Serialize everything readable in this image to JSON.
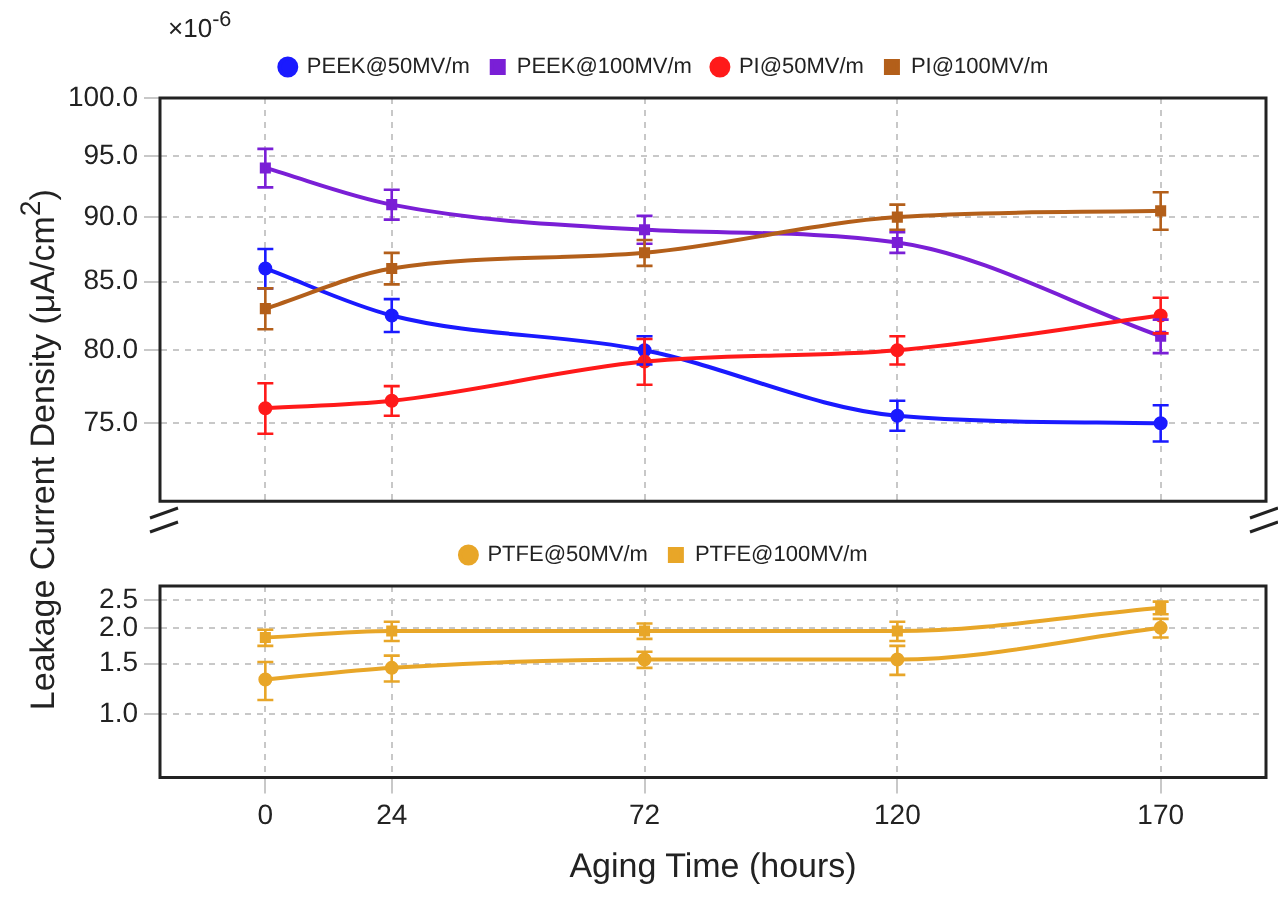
{
  "chart_data": [
    {
      "type": "line",
      "ylabel": "Leakage Current Density (μA/cm$^{2}$)",
      "annotations": [
        "×10$^{-6}$"
      ],
      "x": [
        0,
        24,
        72,
        120,
        170
      ],
      "xlim": [
        -20,
        190
      ],
      "xticks": [
        0,
        24,
        72,
        120,
        170
      ],
      "ylim": [
        70,
        100
      ],
      "yticks": [
        {
          "value": 75,
          "label": "75.0"
        },
        {
          "value": 80,
          "label": "80.0"
        },
        {
          "value": 85,
          "label": "85.0"
        },
        {
          "value": 90,
          "label": "90.0"
        },
        {
          "value": 95,
          "label": "95.0"
        },
        {
          "value": 100,
          "label": "100.0"
        }
      ],
      "log": "y",
      "grid": true,
      "legend": "top",
      "tick_labels": "y",
      "series": [
        {
          "name": "PEEK@50MV/m",
          "color": "#1a1aff",
          "marker": "circle",
          "values": [
            86,
            82.5,
            80,
            75.5,
            75
          ],
          "errors": [
            1.5,
            1.2,
            1,
            1,
            1.2
          ]
        },
        {
          "name": "PEEK@100MV/m",
          "color": "#7a1fd6",
          "marker": "square",
          "values": [
            94,
            91,
            89,
            88,
            81
          ],
          "errors": [
            1.6,
            1.2,
            1.1,
            0.8,
            1.2
          ]
        },
        {
          "name": "PI@50MV/m",
          "color": "#ff1a1a",
          "marker": "circle",
          "values": [
            76,
            76.5,
            79.2,
            80,
            82.5
          ],
          "errors": [
            1.7,
            1,
            1.6,
            1,
            1.3
          ]
        },
        {
          "name": "PI@100MV/m",
          "color": "#b35f1a",
          "marker": "square",
          "values": [
            83,
            86,
            87.2,
            90,
            90.5
          ],
          "errors": [
            1.5,
            1.2,
            1,
            1,
            1.5
          ]
        }
      ]
    },
    {
      "type": "line",
      "xlabel": "Aging Time (hours)",
      "x": [
        0,
        24,
        72,
        120,
        170
      ],
      "xlim": [
        -20,
        190
      ],
      "xticks": [
        0,
        24,
        72,
        120,
        170
      ],
      "ylim": [
        0.6,
        2.8
      ],
      "yticks": [
        {
          "value": 1,
          "label": "1.0"
        },
        1.5,
        {
          "value": 2,
          "label": "2.0"
        },
        2.5
      ],
      "log": "y",
      "grid": true,
      "legend": "top",
      "series": [
        {
          "name": "PTFE@50MV/m",
          "color": "#e8a628",
          "marker": "circle",
          "values": [
            1.32,
            1.45,
            1.55,
            1.55,
            2.0
          ],
          "errors": [
            0.2,
            0.15,
            0.1,
            0.18,
            0.15
          ]
        },
        {
          "name": "PTFE@100MV/m",
          "color": "#e8a628",
          "marker": "square",
          "values": [
            1.85,
            1.95,
            1.95,
            1.95,
            2.35
          ],
          "errors": [
            0.12,
            0.15,
            0.12,
            0.15,
            0.12
          ]
        }
      ]
    }
  ]
}
